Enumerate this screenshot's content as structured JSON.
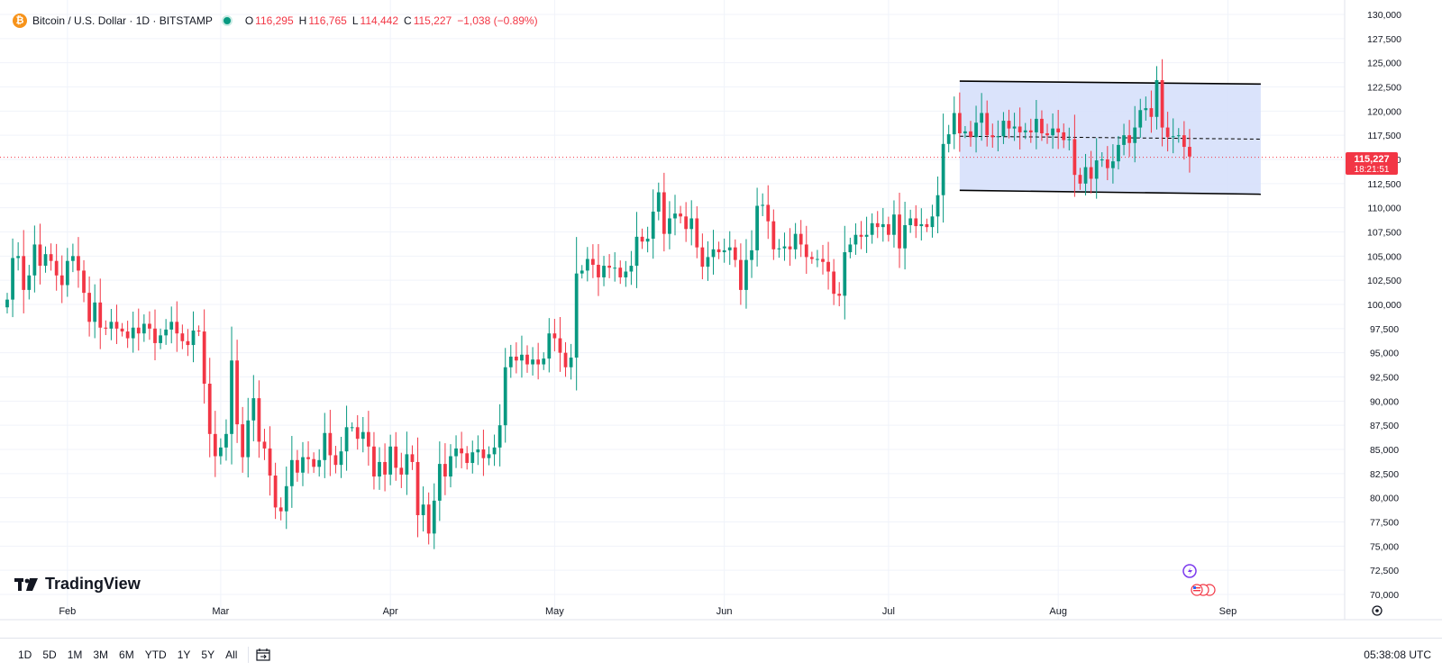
{
  "legend": {
    "symbol": "Bitcoin / U.S. Dollar · 1D · BITSTAMP",
    "o_label": "O",
    "o": "116,295",
    "h_label": "H",
    "h": "116,765",
    "l_label": "L",
    "l": "114,442",
    "c_label": "C",
    "c": "115,227",
    "change": "−1,038 (−0.89%)"
  },
  "price_tag": {
    "price": "115,227",
    "countdown": "18:21:51"
  },
  "brand": "TradingView",
  "ranges": [
    "1D",
    "5D",
    "1M",
    "3M",
    "6M",
    "YTD",
    "1Y",
    "5Y",
    "All"
  ],
  "clock": "05:38:08 UTC",
  "colors": {
    "up": "#089981",
    "down": "#f23645",
    "channel_fill": "#d6e0fb",
    "grid": "#f0f3fa",
    "last_price": "#f23645"
  },
  "chart_data": {
    "type": "candlestick",
    "title": "Bitcoin / U.S. Dollar · 1D · BITSTAMP",
    "ylim": [
      70000,
      130000
    ],
    "y_ticks": [
      70000,
      72500,
      75000,
      77500,
      80000,
      82500,
      85000,
      87500,
      90000,
      92500,
      95000,
      97500,
      100000,
      102500,
      105000,
      107500,
      110000,
      112500,
      115000,
      117500,
      120000,
      122500,
      125000,
      127500,
      130000
    ],
    "y_tick_labels": [
      "70,000",
      "72,500",
      "75,000",
      "77,500",
      "80,000",
      "82,500",
      "85,000",
      "87,500",
      "90,000",
      "92,500",
      "95,000",
      "97,500",
      "100,000",
      "102,500",
      "105,000",
      "107,500",
      "110,000",
      "112,500",
      "115,000",
      "117,500",
      "120,000",
      "122,500",
      "125,000",
      "127,500",
      "130,000"
    ],
    "x_labels": [
      {
        "label": "Feb",
        "day": 31
      },
      {
        "label": "Mar",
        "day": 59
      },
      {
        "label": "Apr",
        "day": 90
      },
      {
        "label": "May",
        "day": 120
      },
      {
        "label": "Jun",
        "day": 151
      },
      {
        "label": "Jul",
        "day": 181
      },
      {
        "label": "Aug",
        "day": 212
      },
      {
        "label": "Sep",
        "day": 243
      }
    ],
    "x_range_days": [
      20,
      264
    ],
    "start_day": 20,
    "closes": [
      100500,
      104800,
      105000,
      101500,
      103000,
      106200,
      104000,
      105200,
      104500,
      103000,
      102000,
      104500,
      105000,
      103500,
      101200,
      98200,
      100200,
      97600,
      97500,
      98200,
      97500,
      97200,
      96500,
      97600,
      97000,
      98000,
      97500,
      96000,
      96800,
      97400,
      98200,
      97000,
      96200,
      95800,
      97300,
      97200,
      91800,
      86600,
      84300,
      85200,
      86600,
      94200,
      87600,
      84200,
      88000,
      90300,
      85800,
      85100,
      82300,
      79000,
      78600,
      81200,
      83900,
      82600,
      84200,
      84000,
      83200,
      83900,
      86700,
      84400,
      83400,
      84800,
      87300,
      87300,
      86100,
      86800,
      85300,
      82200,
      83700,
      82400,
      85300,
      83100,
      82400,
      84500,
      83700,
      78200,
      79300,
      76300,
      79700,
      83500,
      82200,
      84300,
      85100,
      84600,
      83600,
      84700,
      85000,
      84100,
      84500,
      85200,
      87500,
      93500,
      94600,
      94200,
      94800,
      93800,
      94300,
      93800,
      94400,
      97000,
      96500,
      95000,
      93500,
      94500,
      103200,
      103500,
      104700,
      104100,
      102800,
      104000,
      103800,
      103800,
      102800,
      103400,
      104000,
      107000,
      106500,
      106800,
      109600,
      111600,
      107300,
      108900,
      109400,
      109100,
      107800,
      108900,
      105900,
      103900,
      104900,
      105700,
      105400,
      105600,
      105900,
      104600,
      101500,
      104600,
      105600,
      110200,
      110300,
      108600,
      105700,
      105800,
      106000,
      105700,
      107300,
      106200,
      104900,
      104700,
      104700,
      104400,
      103400,
      101100,
      100900,
      105400,
      106200,
      107200,
      107000,
      107200,
      108400,
      108000,
      108300,
      107200,
      109300,
      105800,
      108200,
      108900,
      108100,
      108300,
      108000,
      109100,
      111300,
      116600,
      117600,
      119800,
      117700,
      117900,
      117300,
      118800,
      119800,
      117500,
      117300,
      117400,
      119000,
      118200,
      118400,
      117800,
      118000,
      117800,
      119200,
      117700,
      117500,
      118200,
      117800,
      117000,
      117100,
      113400,
      112500,
      114200,
      113000,
      114900,
      115000,
      114100,
      114800,
      116500,
      117500,
      116700,
      118300,
      120100,
      120300,
      119400,
      123200,
      118300,
      117300,
      117400,
      117500,
      116300,
      115300
    ],
    "channel": {
      "start_day": 194,
      "end_day": 249,
      "top": [
        123100,
        122800
      ],
      "bottom": [
        111800,
        111400
      ],
      "mid": [
        117400,
        117100
      ]
    },
    "last_price": 115227
  }
}
